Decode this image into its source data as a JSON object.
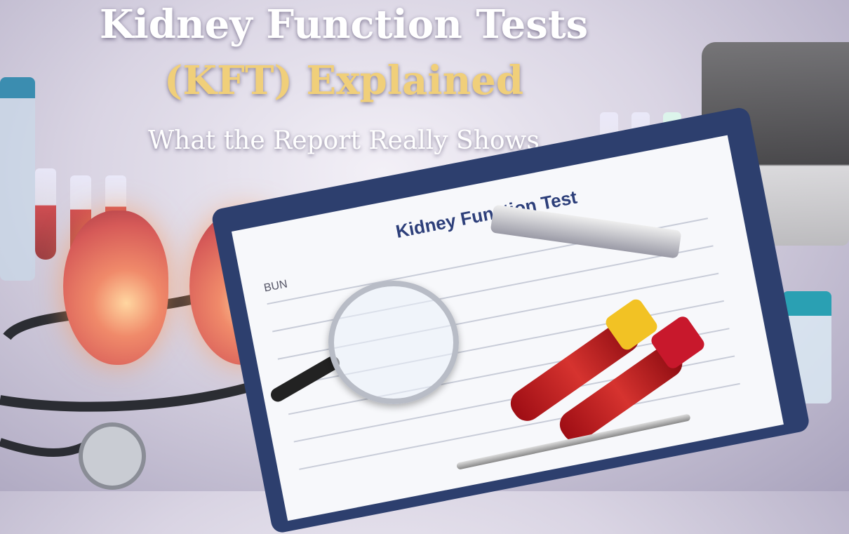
{
  "title": {
    "line1": "Kidney Function Tests",
    "line2": "(KFT) Explained",
    "subtitle": "What the Report Really Shows"
  },
  "report": {
    "heading": "Kidney Function Test",
    "label_bun": "BUN"
  },
  "colors": {
    "title": "#ffffff",
    "accent_gold": "#f0cf7a",
    "clipboard": "#2d3f6e",
    "kidney": "#d65a58",
    "blood": "#b01c1c"
  }
}
